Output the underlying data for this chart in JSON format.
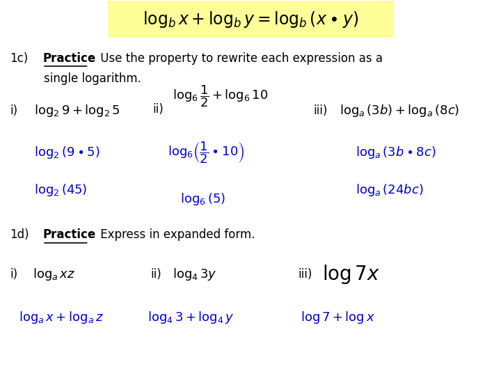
{
  "bg_color": "#ffffff",
  "highlight_color": "#ffff99",
  "blue_color": "#0000cc",
  "black_color": "#000000",
  "line1c_label": "1c)",
  "line1c_practice": "Practice",
  "line1c_rest": ":  Use the property to rewrite each expression as a",
  "line1c_rest2": "single logarithm.",
  "line1d_label": "1d)",
  "line1d_practice": "Practice",
  "line1d_rest": ":  Express in expanded form.",
  "header_math": "$\\log_b x + \\log_b y = \\log_b(x \\bullet y)$",
  "i_label": "i)",
  "ii_label": "ii)",
  "iii_label": "iii)",
  "c_i_q": "$\\log_2 9 + \\log_2 5$",
  "c_i_a1": "$\\log_2(9 \\bullet 5)$",
  "c_i_a2": "$\\log_2(45)$",
  "c_ii_q": "$\\log_6 \\dfrac{1}{2} + \\log_6 10$",
  "c_ii_a1": "$\\log_6\\!\\left(\\dfrac{1}{2} \\bullet 10\\right)$",
  "c_ii_a2": "$\\log_6(5)$",
  "c_iii_q": "$\\log_a(3b) + \\log_a(8c)$",
  "c_iii_a1": "$\\log_a(3b \\bullet 8c)$",
  "c_iii_a2": "$\\log_a(24bc)$",
  "d_i_q": "$\\log_a xz$",
  "d_i_a": "$\\log_a x + \\log_a z$",
  "d_ii_q": "$\\log_4 3y$",
  "d_ii_a": "$\\log_4 3 + \\log_4 y$",
  "d_iii_q": "$\\log 7x$",
  "d_iii_a": "$\\log 7 + \\log x$"
}
